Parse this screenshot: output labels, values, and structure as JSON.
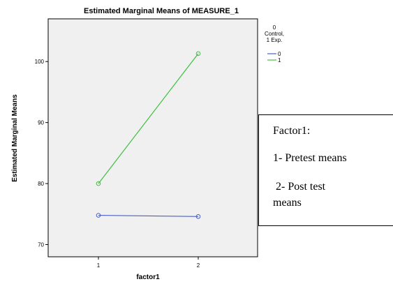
{
  "chart_data": {
    "type": "line",
    "title": "Estimated Marginal Means of MEASURE_1",
    "xlabel": "factor1",
    "ylabel": "Estimated Marginal Means",
    "categories": [
      "1",
      "2"
    ],
    "ylim": [
      68,
      107
    ],
    "yticks": [
      70,
      80,
      90,
      100
    ],
    "grid": false,
    "legend": {
      "title_lines": [
        "0",
        "Control,",
        "1 Exp."
      ],
      "placement": "right"
    },
    "series": [
      {
        "name": "0",
        "color": "#4a5fc1",
        "values": [
          74.8,
          74.6
        ]
      },
      {
        "name": "1",
        "color": "#3fbf3f",
        "values": [
          80.0,
          101.3
        ]
      }
    ]
  },
  "annotation": {
    "line1": "Factor1:",
    "line2": "1- Pretest means",
    "line3": "2- Post test",
    "line4": "means"
  },
  "colors": {
    "plot_background": "#f0f0f0",
    "frame": "#000000"
  }
}
